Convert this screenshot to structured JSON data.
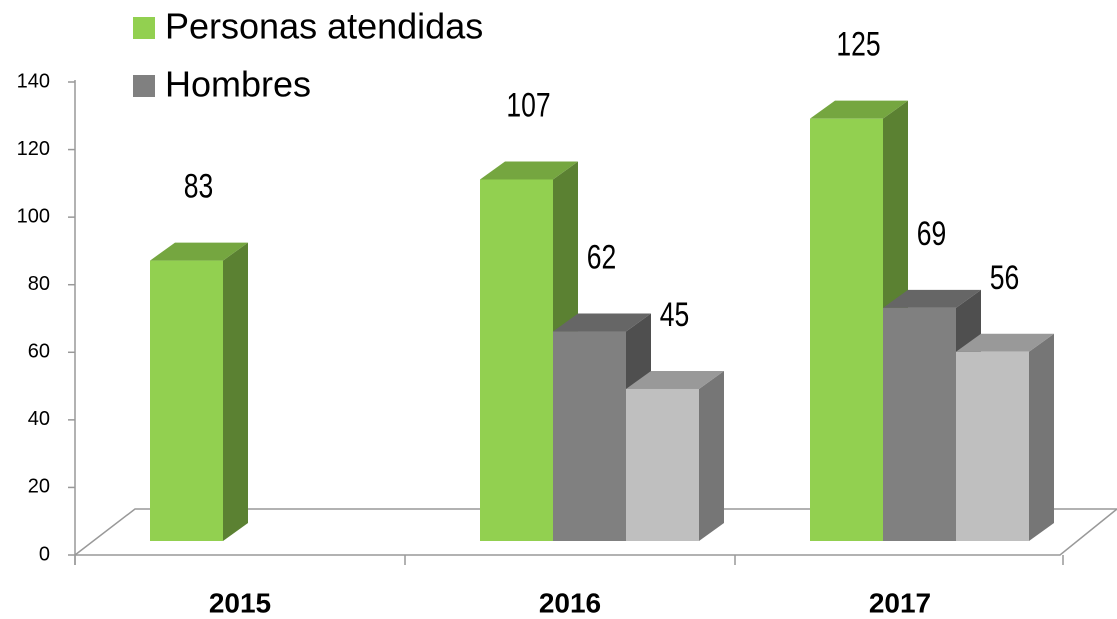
{
  "chart_data": {
    "type": "bar3d",
    "categories": [
      "2015",
      "2016",
      "2017"
    ],
    "series": [
      {
        "name": "Personas atendidas",
        "color": "#92d050",
        "values": [
          83,
          107,
          125
        ]
      },
      {
        "name": "Hombres",
        "color": "#808080",
        "values": [
          null,
          62,
          69
        ]
      },
      {
        "name": null,
        "color": "#bfbfbf",
        "values": [
          null,
          45,
          56
        ]
      }
    ],
    "ylim": [
      0,
      140
    ],
    "yticks": [
      0,
      20,
      40,
      60,
      80,
      100,
      120,
      140
    ]
  }
}
